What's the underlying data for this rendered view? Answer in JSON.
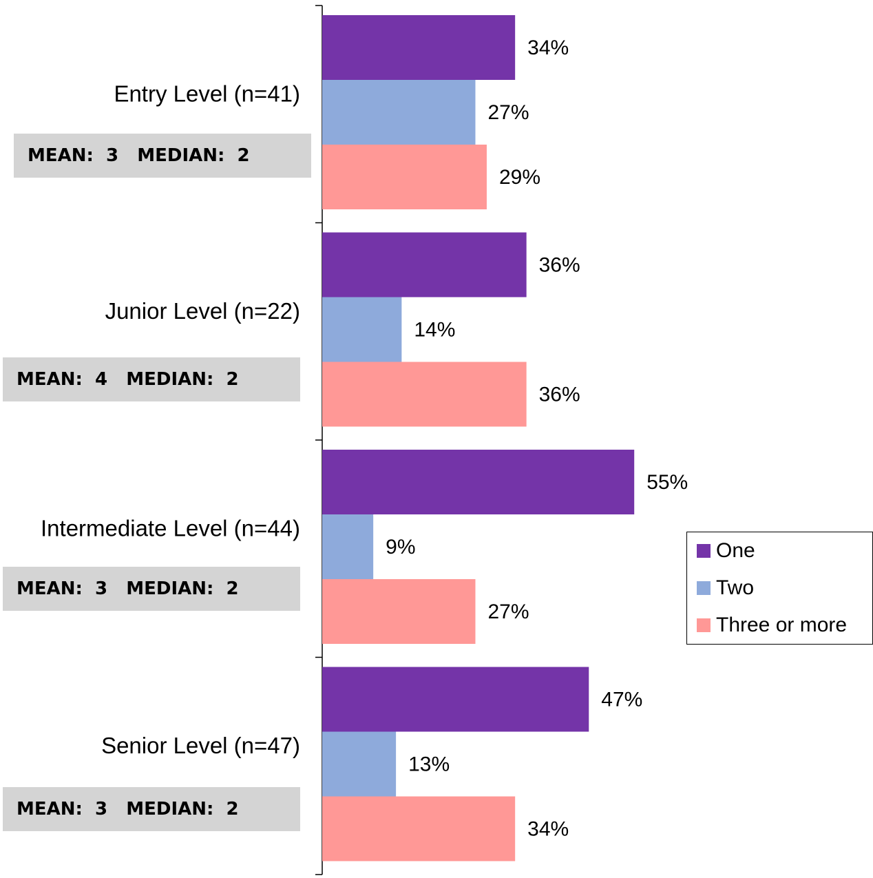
{
  "chart_data": {
    "type": "bar",
    "orientation": "horizontal",
    "categories": [
      "Entry Level (n=41)",
      "Junior Level (n=22)",
      "Intermediate Level (n=44)",
      "Senior Level (n=47)"
    ],
    "series": [
      {
        "name": "One",
        "color": "#7434a8",
        "values": [
          34,
          36,
          55,
          47
        ],
        "labels": [
          "34%",
          "36%",
          "55%",
          "47%"
        ]
      },
      {
        "name": "Two",
        "color": "#8eaadb",
        "values": [
          27,
          14,
          9,
          13
        ],
        "labels": [
          "27%",
          "14%",
          "9%",
          "13%"
        ]
      },
      {
        "name": "Three or more",
        "color": "#ff9896",
        "values": [
          29,
          36,
          27,
          34
        ],
        "labels": [
          "29%",
          "36%",
          "27%",
          "34%"
        ]
      }
    ],
    "stats": [
      "MEAN:  3   MEDIAN:  2",
      "MEAN:  4   MEDIAN:  2",
      "MEAN:  3   MEDIAN:  2",
      "MEAN:  3   MEDIAN:  2"
    ],
    "legend_position": "right",
    "grid": false
  }
}
